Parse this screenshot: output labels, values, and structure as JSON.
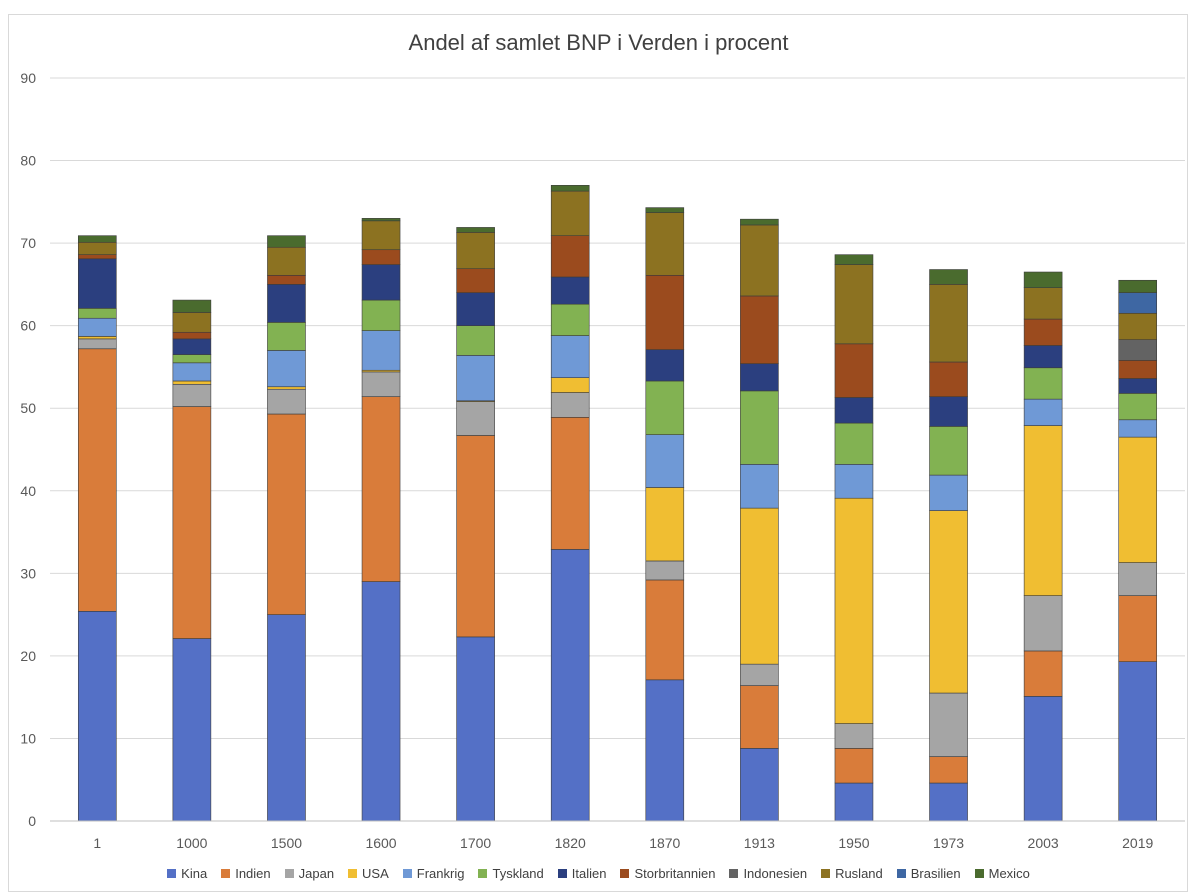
{
  "chart_data": {
    "type": "bar",
    "stacked": true,
    "title": "Andel af samlet BNP i Verden i procent",
    "xlabel": "",
    "ylabel": "",
    "ylim": [
      0,
      90
    ],
    "yticks": [
      "0",
      "10",
      "20",
      "30",
      "40",
      "50",
      "60",
      "70",
      "80",
      "90"
    ],
    "grid": true,
    "legend_position": "bottom",
    "categories": [
      "1",
      "1000",
      "1500",
      "1600",
      "1700",
      "1820",
      "1870",
      "1913",
      "1950",
      "1973",
      "2003",
      "2019"
    ],
    "series": [
      {
        "name": "Kina",
        "color": "#5470c6",
        "values": [
          25.4,
          22.1,
          25.0,
          29.0,
          22.3,
          32.9,
          17.1,
          8.8,
          4.6,
          4.6,
          15.1,
          19.3
        ]
      },
      {
        "name": "Indien",
        "color": "#d97c3a",
        "values": [
          31.8,
          28.1,
          24.3,
          22.4,
          24.4,
          16.0,
          12.1,
          7.6,
          4.2,
          3.2,
          5.5,
          8.0
        ]
      },
      {
        "name": "Japan",
        "color": "#a5a5a5",
        "values": [
          1.2,
          2.7,
          3.0,
          3.0,
          4.1,
          3.0,
          2.3,
          2.6,
          3.0,
          7.7,
          6.7,
          4.0
        ]
      },
      {
        "name": "USA",
        "color": "#f0be32",
        "values": [
          0.3,
          0.4,
          0.3,
          0.2,
          0.1,
          1.8,
          8.9,
          18.9,
          27.3,
          22.1,
          20.6,
          15.2
        ]
      },
      {
        "name": "Frankrig",
        "color": "#6f99d6",
        "values": [
          2.2,
          2.2,
          4.4,
          4.8,
          5.5,
          5.1,
          6.4,
          5.3,
          4.1,
          4.3,
          3.2,
          2.1
        ]
      },
      {
        "name": "Tyskland",
        "color": "#82b252",
        "values": [
          1.2,
          1.0,
          3.4,
          3.7,
          3.6,
          3.8,
          6.5,
          8.9,
          5.0,
          5.9,
          3.8,
          3.2
        ]
      },
      {
        "name": "Italien",
        "color": "#2b3f7f",
        "values": [
          6.0,
          1.9,
          4.6,
          4.3,
          4.0,
          3.3,
          3.8,
          3.3,
          3.1,
          3.6,
          2.7,
          1.8
        ]
      },
      {
        "name": "Storbritannien",
        "color": "#9b4b1e",
        "values": [
          0.5,
          0.8,
          1.1,
          1.8,
          2.9,
          5.0,
          9.0,
          8.2,
          6.5,
          4.2,
          3.2,
          2.2
        ]
      },
      {
        "name": "Indonesien",
        "color": "#636363",
        "values": [
          0,
          0,
          0,
          0,
          0,
          0,
          0,
          0,
          0,
          0,
          0,
          2.5
        ]
      },
      {
        "name": "Rusland",
        "color": "#8c7221",
        "values": [
          1.5,
          2.4,
          3.4,
          3.5,
          4.4,
          5.4,
          7.6,
          8.6,
          9.6,
          9.4,
          3.8,
          3.2
        ]
      },
      {
        "name": "Brasilien",
        "color": "#3e67a3",
        "values": [
          0,
          0,
          0,
          0,
          0,
          0,
          0,
          0,
          0,
          0,
          0,
          2.5
        ]
      },
      {
        "name": "Mexico",
        "color": "#4a6b2e",
        "values": [
          0.8,
          1.5,
          1.4,
          0.3,
          0.6,
          0.7,
          0.6,
          0.7,
          1.2,
          1.8,
          1.9,
          1.5
        ]
      }
    ]
  }
}
